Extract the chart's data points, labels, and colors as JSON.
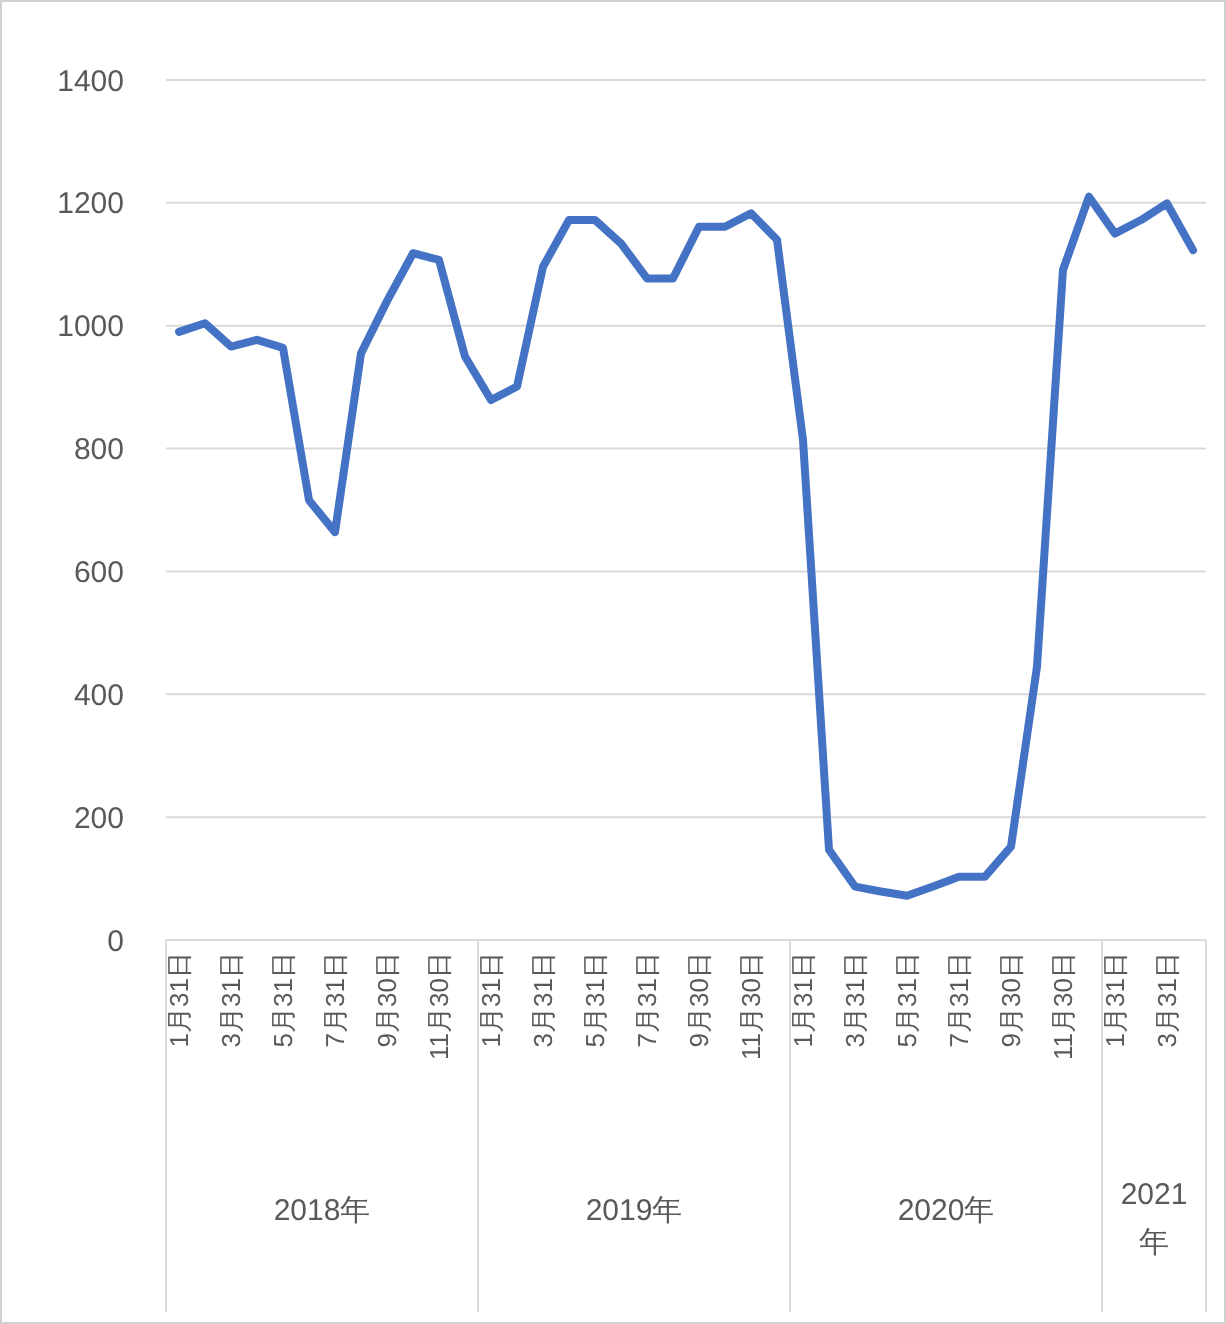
{
  "chart_data": {
    "type": "line",
    "categories": [
      "1月31日",
      null,
      "3月31日",
      null,
      "5月31日",
      null,
      "7月31日",
      null,
      "9月30日",
      null,
      "11月30日",
      null,
      "1月31日",
      null,
      "3月31日",
      null,
      "5月31日",
      null,
      "7月31日",
      null,
      "9月30日",
      null,
      "11月30日",
      null,
      "1月31日",
      null,
      "3月31日",
      null,
      "5月31日",
      null,
      "7月31日",
      null,
      "9月30日",
      null,
      "11月30日",
      null,
      "1月31日",
      null,
      "3月31日",
      null
    ],
    "series": [
      {
        "color": "#4472c4",
        "values": [
          990,
          1004,
          966,
          977,
          964,
          716,
          664,
          955,
          1040,
          1118,
          1107,
          950,
          879,
          901,
          1096,
          1172,
          1172,
          1134,
          1077,
          1077,
          1161,
          1161,
          1183,
          1140,
          814,
          147,
          87,
          79,
          72,
          87,
          103,
          103,
          152,
          445,
          1091,
          1210,
          1150,
          1172,
          1199,
          1123
        ]
      }
    ],
    "annotations": [
      "2018年",
      "2019年",
      "2020年",
      "2021年"
    ],
    "ylim": [
      0,
      1400
    ],
    "yticks": [
      0,
      200,
      400,
      600,
      800,
      1000,
      1200,
      1400
    ],
    "grid": "y",
    "marker": "none",
    "line_style": "solid"
  }
}
